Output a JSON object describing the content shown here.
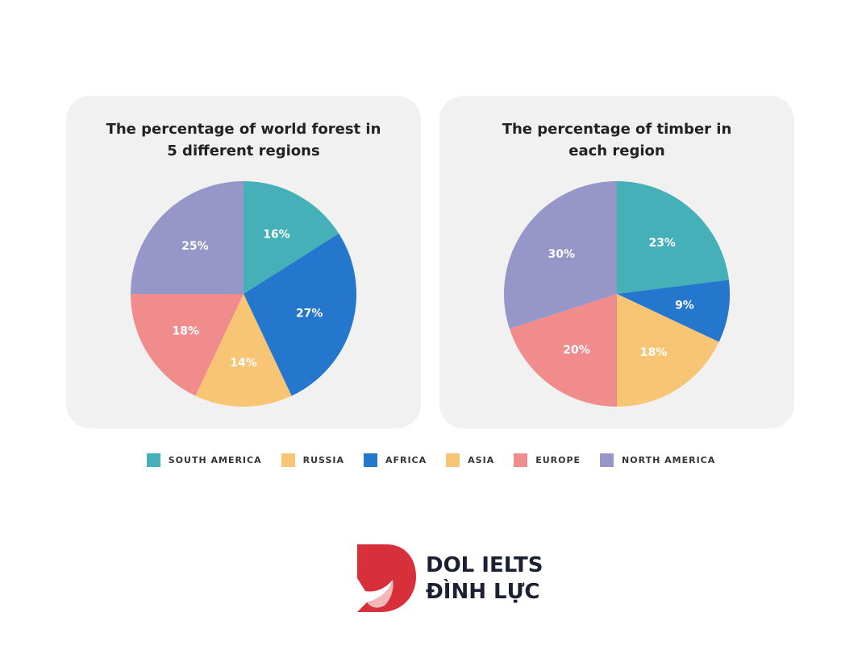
{
  "colors": {
    "south_america": "#45b0b8",
    "russia": "#f8c574",
    "africa": "#2477cd",
    "asia": "#f8c574",
    "europe": "#f08c8c",
    "north_america": "#9796c8",
    "card_bg": "#f1f1f1",
    "logo_red": "#d8303a"
  },
  "legend": [
    {
      "label": "SOUTH AMERICA",
      "color": "#45b0b8"
    },
    {
      "label": "RUSSIA",
      "color": "#f8c574"
    },
    {
      "label": "AFRICA",
      "color": "#2477cd"
    },
    {
      "label": "ASIA",
      "color": "#f8c574"
    },
    {
      "label": "EUROPE",
      "color": "#f08c8c"
    },
    {
      "label": "NORTH AMERICA",
      "color": "#9796c8"
    }
  ],
  "chart_data": [
    {
      "type": "pie",
      "title_lines": [
        "The percentage of world forest in",
        "5 different regions"
      ],
      "slices": [
        {
          "name": "South America",
          "value": 16,
          "label": "16%",
          "color": "#45b0b8"
        },
        {
          "name": "Africa",
          "value": 27,
          "label": "27%",
          "color": "#2477cd"
        },
        {
          "name": "Asia",
          "value": 14,
          "label": "14%",
          "color": "#f8c574"
        },
        {
          "name": "Europe",
          "value": 18,
          "label": "18%",
          "color": "#f08c8c"
        },
        {
          "name": "North America",
          "value": 25,
          "label": "25%",
          "color": "#9796c8"
        }
      ]
    },
    {
      "type": "pie",
      "title_lines": [
        "The percentage of timber in",
        "each region"
      ],
      "slices": [
        {
          "name": "South America",
          "value": 23,
          "label": "23%",
          "color": "#45b0b8"
        },
        {
          "name": "Africa",
          "value": 9,
          "label": "9%",
          "color": "#2477cd"
        },
        {
          "name": "Asia",
          "value": 18,
          "label": "18%",
          "color": "#f8c574"
        },
        {
          "name": "Europe",
          "value": 20,
          "label": "20%",
          "color": "#f08c8c"
        },
        {
          "name": "North America",
          "value": 30,
          "label": "30%",
          "color": "#9796c8"
        }
      ]
    }
  ],
  "logo": {
    "line1": "DOL IELTS",
    "line2": "ĐÌNH LỰC"
  }
}
